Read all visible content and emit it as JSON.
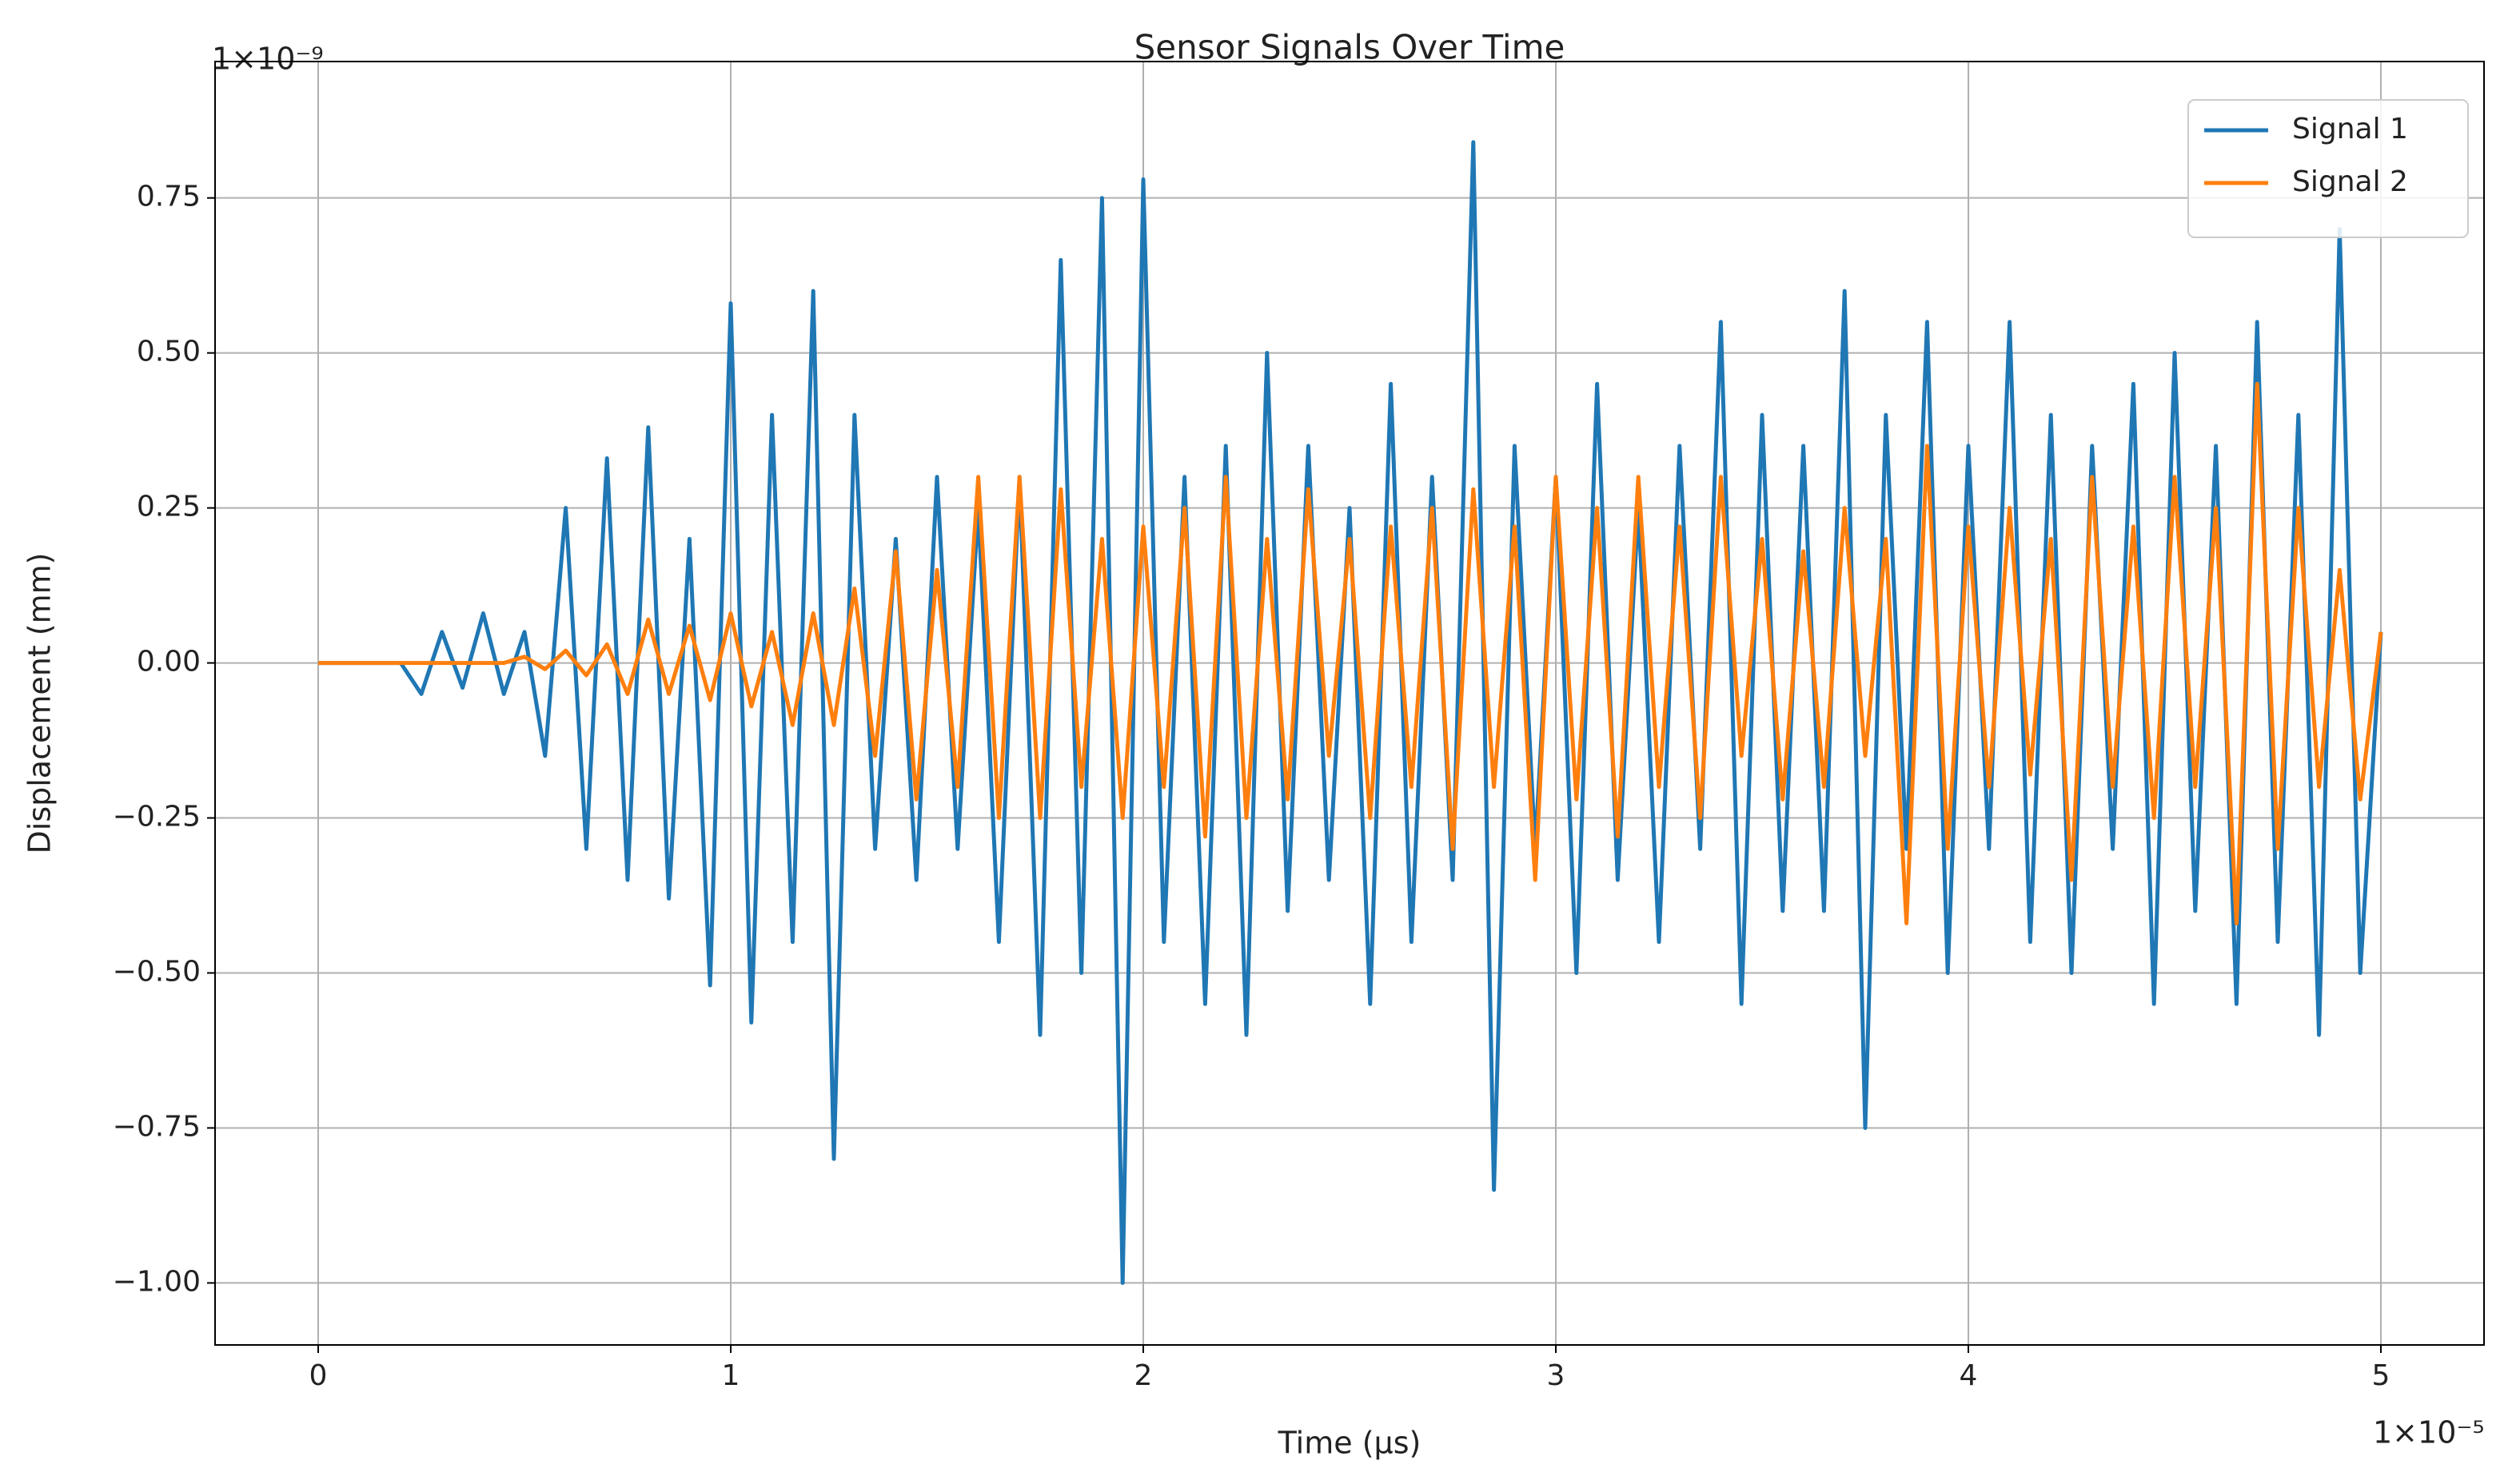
{
  "chart_data": {
    "type": "line",
    "title": "Sensor Signals Over Time",
    "x_label": "Time (μs)",
    "y_label": "Displacement (mm)",
    "x_offset_text": "1×10⁻⁵",
    "y_offset_text": "1×10⁻⁹",
    "x": [
      0,
      0.05,
      0.1,
      0.15,
      0.2,
      0.25,
      0.3,
      0.35,
      0.4,
      0.45,
      0.5,
      0.55,
      0.6,
      0.65,
      0.7,
      0.75,
      0.8,
      0.85,
      0.9,
      0.95,
      1,
      1.05,
      1.1,
      1.15,
      1.2,
      1.25,
      1.3,
      1.35,
      1.4,
      1.45,
      1.5,
      1.55,
      1.6,
      1.65,
      1.7,
      1.75,
      1.8,
      1.85,
      1.9,
      1.95,
      2,
      2.05,
      2.1,
      2.15,
      2.2,
      2.25,
      2.3,
      2.35,
      2.4,
      2.45,
      2.5,
      2.55,
      2.6,
      2.65,
      2.7,
      2.75,
      2.8,
      2.85,
      2.9,
      2.95,
      3,
      3.05,
      3.1,
      3.15,
      3.2,
      3.25,
      3.3,
      3.35,
      3.4,
      3.45,
      3.5,
      3.55,
      3.6,
      3.65,
      3.7,
      3.75,
      3.8,
      3.85,
      3.9,
      3.95,
      4,
      4.05,
      4.1,
      4.15,
      4.2,
      4.25,
      4.3,
      4.35,
      4.4,
      4.45,
      4.5,
      4.55,
      4.6,
      4.65,
      4.7,
      4.75,
      4.8,
      4.85,
      4.9,
      4.95,
      5
    ],
    "series": [
      {
        "name": "Signal 1",
        "color": "#1f77b4",
        "values": [
          0,
          0,
          0,
          0,
          0,
          -0.05,
          0.05,
          -0.04,
          0.08,
          -0.05,
          0.05,
          -0.15,
          0.25,
          -0.3,
          0.33,
          -0.35,
          0.38,
          -0.38,
          0.2,
          -0.52,
          0.58,
          -0.58,
          0.4,
          -0.45,
          0.6,
          -0.8,
          0.4,
          -0.3,
          0.2,
          -0.35,
          0.3,
          -0.3,
          0.25,
          -0.45,
          0.3,
          -0.6,
          0.65,
          -0.5,
          0.75,
          -1.0,
          0.78,
          -0.45,
          0.3,
          -0.55,
          0.35,
          -0.6,
          0.5,
          -0.4,
          0.35,
          -0.35,
          0.25,
          -0.55,
          0.45,
          -0.45,
          0.3,
          -0.35,
          0.84,
          -0.85,
          0.35,
          -0.3,
          0.3,
          -0.5,
          0.45,
          -0.35,
          0.25,
          -0.45,
          0.35,
          -0.3,
          0.55,
          -0.55,
          0.4,
          -0.4,
          0.35,
          -0.4,
          0.6,
          -0.75,
          0.4,
          -0.3,
          0.55,
          -0.5,
          0.35,
          -0.3,
          0.55,
          -0.45,
          0.4,
          -0.5,
          0.35,
          -0.3,
          0.45,
          -0.55,
          0.5,
          -0.4,
          0.35,
          -0.55,
          0.55,
          -0.45,
          0.4,
          -0.6,
          0.7,
          -0.5,
          0.05
        ]
      },
      {
        "name": "Signal 2",
        "color": "#ff7f0e",
        "values": [
          0,
          0,
          0,
          0,
          0,
          0,
          0,
          0,
          0,
          0,
          0.01,
          -0.01,
          0.02,
          -0.02,
          0.03,
          -0.05,
          0.07,
          -0.05,
          0.06,
          -0.06,
          0.08,
          -0.07,
          0.05,
          -0.1,
          0.08,
          -0.1,
          0.12,
          -0.15,
          0.18,
          -0.22,
          0.15,
          -0.2,
          0.3,
          -0.25,
          0.3,
          -0.25,
          0.28,
          -0.2,
          0.2,
          -0.25,
          0.22,
          -0.2,
          0.25,
          -0.28,
          0.3,
          -0.25,
          0.2,
          -0.22,
          0.28,
          -0.15,
          0.2,
          -0.25,
          0.22,
          -0.2,
          0.25,
          -0.3,
          0.28,
          -0.2,
          0.22,
          -0.35,
          0.3,
          -0.22,
          0.25,
          -0.28,
          0.3,
          -0.2,
          0.22,
          -0.25,
          0.3,
          -0.15,
          0.2,
          -0.22,
          0.18,
          -0.2,
          0.25,
          -0.15,
          0.2,
          -0.42,
          0.35,
          -0.3,
          0.22,
          -0.2,
          0.25,
          -0.18,
          0.2,
          -0.35,
          0.3,
          -0.2,
          0.22,
          -0.25,
          0.3,
          -0.2,
          0.25,
          -0.42,
          0.45,
          -0.3,
          0.25,
          -0.2,
          0.15,
          -0.22,
          0.05
        ]
      }
    ],
    "xlim": [
      -0.25,
      5.25
    ],
    "xticks": [
      0,
      1,
      2,
      3,
      4,
      5
    ],
    "ylim": [
      -1.1,
      0.97
    ],
    "yticks": [
      {
        "value": -1.0,
        "label": "−1.00"
      },
      {
        "value": -0.75,
        "label": "−0.75"
      },
      {
        "value": -0.5,
        "label": "−0.50"
      },
      {
        "value": -0.25,
        "label": "−0.25"
      },
      {
        "value": 0,
        "label": "0.00"
      },
      {
        "value": 0.25,
        "label": "0.25"
      },
      {
        "value": 0.5,
        "label": "0.50"
      },
      {
        "value": 0.75,
        "label": "0.75"
      }
    ],
    "grid": true,
    "legend": "upper right"
  }
}
